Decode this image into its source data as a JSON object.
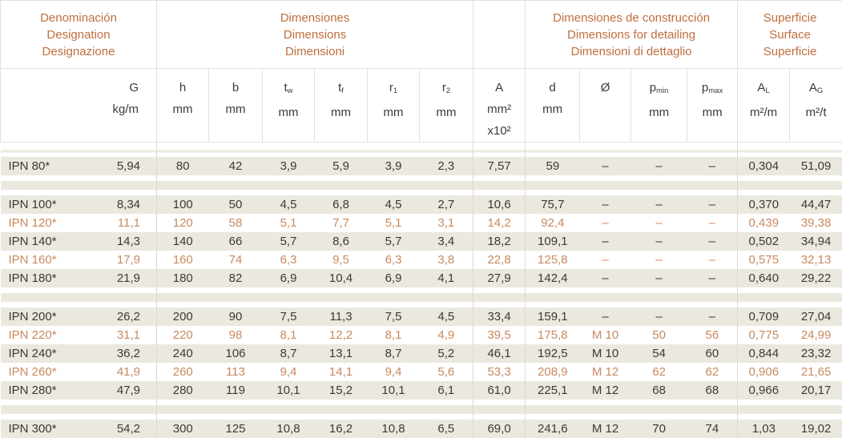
{
  "colors": {
    "accent_orange": "#bf6e3d",
    "highlight_row_text": "#c8895f",
    "row_stripe_beige": "#ebe8df",
    "body_text": "#3e3a34",
    "grid_border": "#e4e1d8"
  },
  "header": {
    "sections": [
      {
        "key": "designation",
        "lines": [
          "Denominación",
          "Designation",
          "Designazione"
        ]
      },
      {
        "key": "dimensions",
        "lines": [
          "Dimensiones",
          "Dimensions",
          "Dimensioni"
        ]
      },
      {
        "key": "area",
        "lines": []
      },
      {
        "key": "construction",
        "lines": [
          "Dimensiones de construcción",
          "Dimensions for detailing",
          "Dimensioni di dettaglio"
        ]
      },
      {
        "key": "surface",
        "lines": [
          "Superficie",
          "Surface",
          "Superficie"
        ]
      }
    ],
    "columns": [
      {
        "key": "g",
        "sym": "G",
        "sub": "",
        "units": [
          "kg/m"
        ]
      },
      {
        "key": "h",
        "sym": "h",
        "sub": "",
        "units": [
          "mm"
        ]
      },
      {
        "key": "b",
        "sym": "b",
        "sub": "",
        "units": [
          "mm"
        ]
      },
      {
        "key": "tw",
        "sym": "t",
        "sub": "w",
        "units": [
          "mm"
        ]
      },
      {
        "key": "tf",
        "sym": "t",
        "sub": "f",
        "units": [
          "mm"
        ]
      },
      {
        "key": "r1",
        "sym": "r",
        "sub": "1",
        "units": [
          "mm"
        ]
      },
      {
        "key": "r2",
        "sym": "r",
        "sub": "2",
        "units": [
          "mm"
        ]
      },
      {
        "key": "a",
        "sym": "A",
        "sub": "",
        "units": [
          "mm²",
          "x10²"
        ]
      },
      {
        "key": "d",
        "sym": "d",
        "sub": "",
        "units": [
          "mm"
        ]
      },
      {
        "key": "diam",
        "sym": "Ø",
        "sub": "",
        "units": []
      },
      {
        "key": "pmin",
        "sym": "p",
        "sub": "min",
        "units": [
          "mm"
        ]
      },
      {
        "key": "pmax",
        "sym": "p",
        "sub": "max",
        "units": [
          "mm"
        ]
      },
      {
        "key": "al",
        "sym": "A",
        "sub": "L",
        "units": [
          "m²/m"
        ]
      },
      {
        "key": "ag",
        "sym": "A",
        "sub": "G",
        "units": [
          "m²/t"
        ]
      }
    ]
  },
  "rows": [
    {
      "type": "data",
      "name": "IPN 80*",
      "highlight": false,
      "values": [
        "5,94",
        "80",
        "42",
        "3,9",
        "5,9",
        "3,9",
        "2,3",
        "7,57",
        "59",
        "–",
        "–",
        "–",
        "0,304",
        "51,09"
      ]
    },
    {
      "type": "gap"
    },
    {
      "type": "data",
      "name": "IPN 100*",
      "highlight": false,
      "values": [
        "8,34",
        "100",
        "50",
        "4,5",
        "6,8",
        "4,5",
        "2,7",
        "10,6",
        "75,7",
        "–",
        "–",
        "–",
        "0,370",
        "44,47"
      ]
    },
    {
      "type": "data",
      "name": "IPN 120*",
      "highlight": true,
      "values": [
        "11,1",
        "120",
        "58",
        "5,1",
        "7,7",
        "5,1",
        "3,1",
        "14,2",
        "92,4",
        "–",
        "–",
        "–",
        "0,439",
        "39,38"
      ]
    },
    {
      "type": "data",
      "name": "IPN 140*",
      "highlight": false,
      "values": [
        "14,3",
        "140",
        "66",
        "5,7",
        "8,6",
        "5,7",
        "3,4",
        "18,2",
        "109,1",
        "–",
        "–",
        "–",
        "0,502",
        "34,94"
      ]
    },
    {
      "type": "data",
      "name": "IPN 160*",
      "highlight": true,
      "values": [
        "17,9",
        "160",
        "74",
        "6,3",
        "9,5",
        "6,3",
        "3,8",
        "22,8",
        "125,8",
        "–",
        "–",
        "–",
        "0,575",
        "32,13"
      ]
    },
    {
      "type": "data",
      "name": "IPN 180*",
      "highlight": false,
      "values": [
        "21,9",
        "180",
        "82",
        "6,9",
        "10,4",
        "6,9",
        "4,1",
        "27,9",
        "142,4",
        "–",
        "–",
        "–",
        "0,640",
        "29,22"
      ]
    },
    {
      "type": "gap"
    },
    {
      "type": "data",
      "name": "IPN 200*",
      "highlight": false,
      "values": [
        "26,2",
        "200",
        "90",
        "7,5",
        "11,3",
        "7,5",
        "4,5",
        "33,4",
        "159,1",
        "–",
        "–",
        "–",
        "0,709",
        "27,04"
      ]
    },
    {
      "type": "data",
      "name": "IPN 220*",
      "highlight": true,
      "values": [
        "31,1",
        "220",
        "98",
        "8,1",
        "12,2",
        "8,1",
        "4,9",
        "39,5",
        "175,8",
        "M 10",
        "50",
        "56",
        "0,775",
        "24,99"
      ]
    },
    {
      "type": "data",
      "name": "IPN 240*",
      "highlight": false,
      "values": [
        "36,2",
        "240",
        "106",
        "8,7",
        "13,1",
        "8,7",
        "5,2",
        "46,1",
        "192,5",
        "M 10",
        "54",
        "60",
        "0,844",
        "23,32"
      ]
    },
    {
      "type": "data",
      "name": "IPN 260*",
      "highlight": true,
      "values": [
        "41,9",
        "260",
        "113",
        "9,4",
        "14,1",
        "9,4",
        "5,6",
        "53,3",
        "208,9",
        "M 12",
        "62",
        "62",
        "0,906",
        "21,65"
      ]
    },
    {
      "type": "data",
      "name": "IPN 280*",
      "highlight": false,
      "values": [
        "47,9",
        "280",
        "119",
        "10,1",
        "15,2",
        "10,1",
        "6,1",
        "61,0",
        "225,1",
        "M 12",
        "68",
        "68",
        "0,966",
        "20,17"
      ]
    },
    {
      "type": "gap"
    },
    {
      "type": "data",
      "name": "IPN 300*",
      "highlight": false,
      "values": [
        "54,2",
        "300",
        "125",
        "10,8",
        "16,2",
        "10,8",
        "6,5",
        "69,0",
        "241,6",
        "M 12",
        "70",
        "74",
        "1,03",
        "19,02"
      ]
    }
  ]
}
